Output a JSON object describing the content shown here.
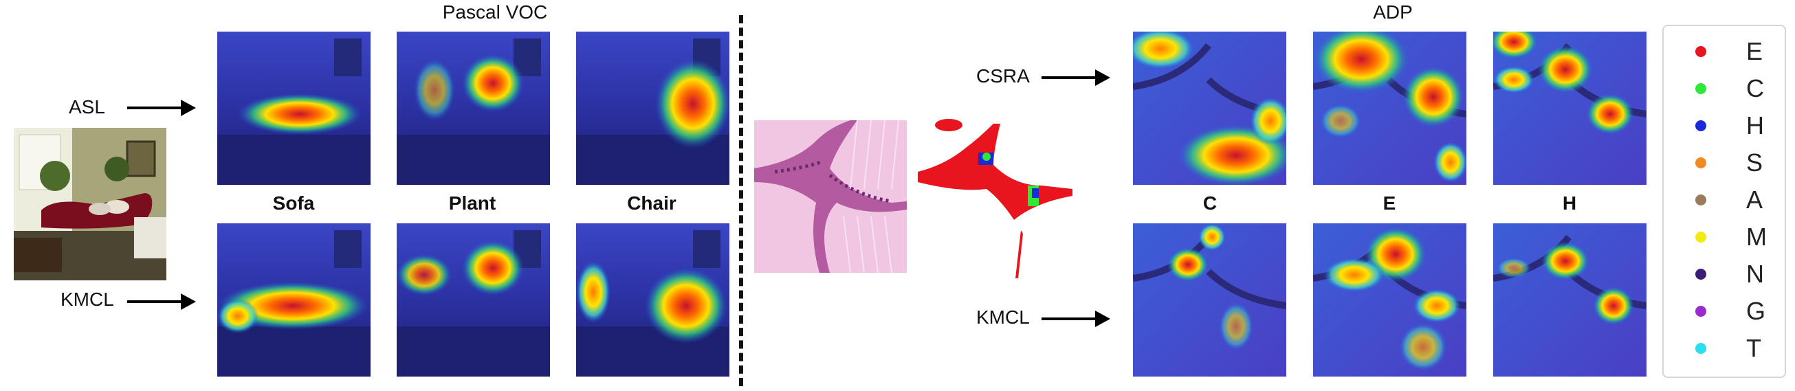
{
  "voc": {
    "title": "Pascal VOC",
    "rows": [
      "ASL",
      "KMCL"
    ],
    "columns": [
      "Sofa",
      "Plant",
      "Chair"
    ]
  },
  "adp": {
    "title": "ADP",
    "rows": [
      "CSRA",
      "KMCL"
    ],
    "columns": [
      "C",
      "E",
      "H"
    ]
  },
  "legend": [
    {
      "label": "E",
      "color": "#e8141e"
    },
    {
      "label": "C",
      "color": "#2ee83a"
    },
    {
      "label": "H",
      "color": "#1b2ad8"
    },
    {
      "label": "S",
      "color": "#f08a24"
    },
    {
      "label": "A",
      "color": "#9a7b5a"
    },
    {
      "label": "M",
      "color": "#f2ea12"
    },
    {
      "label": "N",
      "color": "#3d1c7a"
    },
    {
      "label": "G",
      "color": "#9a2bd0"
    },
    {
      "label": "T",
      "color": "#2ae0f0"
    }
  ]
}
